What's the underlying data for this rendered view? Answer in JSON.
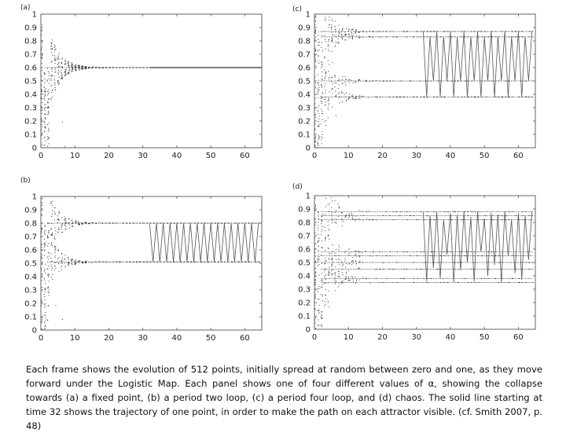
{
  "caption": "Each frame shows the evolution of 512 points, initially spread at random between zero and one, as they move forward under the Logistic Map. Each panel shows one of four different values of α, showing the collapse towards (a) a fixed point, (b) a period two loop, (c) a period four loop, and (d) chaos. The solid line starting at time 32 shows the trajectory of one point, in order to make the path on each attractor visible. (cf. Smith 2007, p. 48)",
  "chart_data": [
    {
      "type": "scatter",
      "panel_label": "(a)",
      "title": "",
      "xlabel": "",
      "ylabel": "",
      "xlim": [
        0,
        65
      ],
      "ylim": [
        0,
        1
      ],
      "x_ticks": [
        0,
        10,
        20,
        30,
        40,
        50,
        60
      ],
      "y_ticks": [
        0,
        0.1,
        0.2,
        0.3,
        0.4,
        0.5,
        0.6,
        0.7,
        0.8,
        0.9,
        1
      ],
      "grid": false,
      "attractor": [
        0.6
      ],
      "trajectory_start": 32,
      "trajectory_values": [
        0.6
      ]
    },
    {
      "type": "scatter",
      "panel_label": "(b)",
      "title": "",
      "xlabel": "",
      "ylabel": "",
      "xlim": [
        0,
        65
      ],
      "ylim": [
        0,
        1
      ],
      "x_ticks": [
        0,
        10,
        20,
        30,
        40,
        50,
        60
      ],
      "y_ticks": [
        0,
        0.1,
        0.2,
        0.3,
        0.4,
        0.5,
        0.6,
        0.7,
        0.8,
        0.9,
        1
      ],
      "grid": false,
      "attractor": [
        0.51,
        0.8
      ],
      "trajectory_start": 32,
      "trajectory_values": [
        0.8,
        0.51
      ]
    },
    {
      "type": "scatter",
      "panel_label": "(c)",
      "title": "",
      "xlabel": "",
      "ylabel": "",
      "xlim": [
        0,
        65
      ],
      "ylim": [
        0,
        1
      ],
      "x_ticks": [
        0,
        10,
        20,
        30,
        40,
        50,
        60
      ],
      "y_ticks": [
        0,
        0.1,
        0.2,
        0.3,
        0.4,
        0.5,
        0.6,
        0.7,
        0.8,
        0.9,
        1
      ],
      "grid": false,
      "attractor": [
        0.38,
        0.5,
        0.83,
        0.87
      ],
      "trajectory_start": 32,
      "trajectory_values": [
        0.87,
        0.38,
        0.83,
        0.5
      ]
    },
    {
      "type": "scatter",
      "panel_label": "(d)",
      "title": "",
      "xlabel": "",
      "ylabel": "",
      "xlim": [
        0,
        65
      ],
      "ylim": [
        0,
        1
      ],
      "x_ticks": [
        0,
        10,
        20,
        30,
        40,
        50,
        60
      ],
      "y_ticks": [
        0,
        0.1,
        0.2,
        0.3,
        0.4,
        0.5,
        0.6,
        0.7,
        0.8,
        0.9,
        1
      ],
      "grid": false,
      "attractor": [
        0.35,
        0.38,
        0.45,
        0.5,
        0.55,
        0.58,
        0.82,
        0.85,
        0.88
      ],
      "trajectory_start": 32,
      "trajectory_values": [
        0.88,
        0.36,
        0.85,
        0.46,
        0.88,
        0.38,
        0.82,
        0.56,
        0.87,
        0.35,
        0.86,
        0.44,
        0.88,
        0.5,
        0.84,
        0.36,
        0.88,
        0.58,
        0.83,
        0.4,
        0.87,
        0.48,
        0.86,
        0.35,
        0.88,
        0.55,
        0.82,
        0.42,
        0.87,
        0.37,
        0.85,
        0.52,
        0.88
      ]
    }
  ]
}
